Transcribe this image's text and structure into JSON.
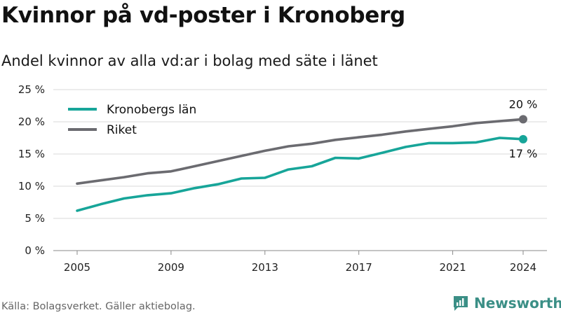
{
  "header": {
    "title": "Kvinnor på vd-poster i Kronoberg",
    "subtitle": "Andel kvinnor av alla vd:ar i bolag med säte i länet"
  },
  "footer": {
    "source": "Källa: Bolagsverket. Gäller aktiebolag.",
    "brand": "Newsworthy",
    "brand_icon": "chart-logo-icon"
  },
  "colors": {
    "kronoberg": "#17a599",
    "riket": "#6b6b70",
    "grid": "#d9d9d9",
    "brand": "#3b8f86"
  },
  "chart_data": {
    "type": "line",
    "x": [
      2005,
      2006,
      2007,
      2008,
      2009,
      2010,
      2011,
      2012,
      2013,
      2014,
      2015,
      2016,
      2017,
      2018,
      2019,
      2020,
      2021,
      2022,
      2023,
      2024
    ],
    "series": [
      {
        "name": "Kronobergs län",
        "values": [
          6.2,
          7.2,
          8.1,
          8.6,
          8.9,
          9.7,
          10.3,
          11.2,
          11.3,
          12.6,
          13.1,
          14.4,
          14.3,
          15.2,
          16.1,
          16.7,
          16.7,
          16.8,
          17.5,
          17.3
        ],
        "end_label": "17 %"
      },
      {
        "name": "Riket",
        "values": [
          10.4,
          10.9,
          11.4,
          12.0,
          12.3,
          13.1,
          13.9,
          14.7,
          15.5,
          16.2,
          16.6,
          17.2,
          17.6,
          18.0,
          18.5,
          18.9,
          19.3,
          19.8,
          20.1,
          20.4
        ],
        "end_label": "20 %"
      }
    ],
    "x_ticks": [
      2005,
      2009,
      2013,
      2017,
      2021,
      2024
    ],
    "x_tick_labels": [
      "2005",
      "2009",
      "2013",
      "2017",
      "2021",
      "2024"
    ],
    "y_ticks": [
      0,
      5,
      10,
      15,
      20,
      25
    ],
    "y_tick_labels": [
      "0 %",
      "5 %",
      "10 %",
      "15 %",
      "20 %",
      "25 %"
    ],
    "xlim": [
      2005,
      2024
    ],
    "ylim": [
      0,
      25
    ],
    "grid": "horizontal",
    "legend_position": "top-left",
    "title": "Kvinnor på vd-poster i Kronoberg",
    "subtitle": "Andel kvinnor av alla vd:ar i bolag med säte i länet",
    "xlabel": "",
    "ylabel": ""
  }
}
